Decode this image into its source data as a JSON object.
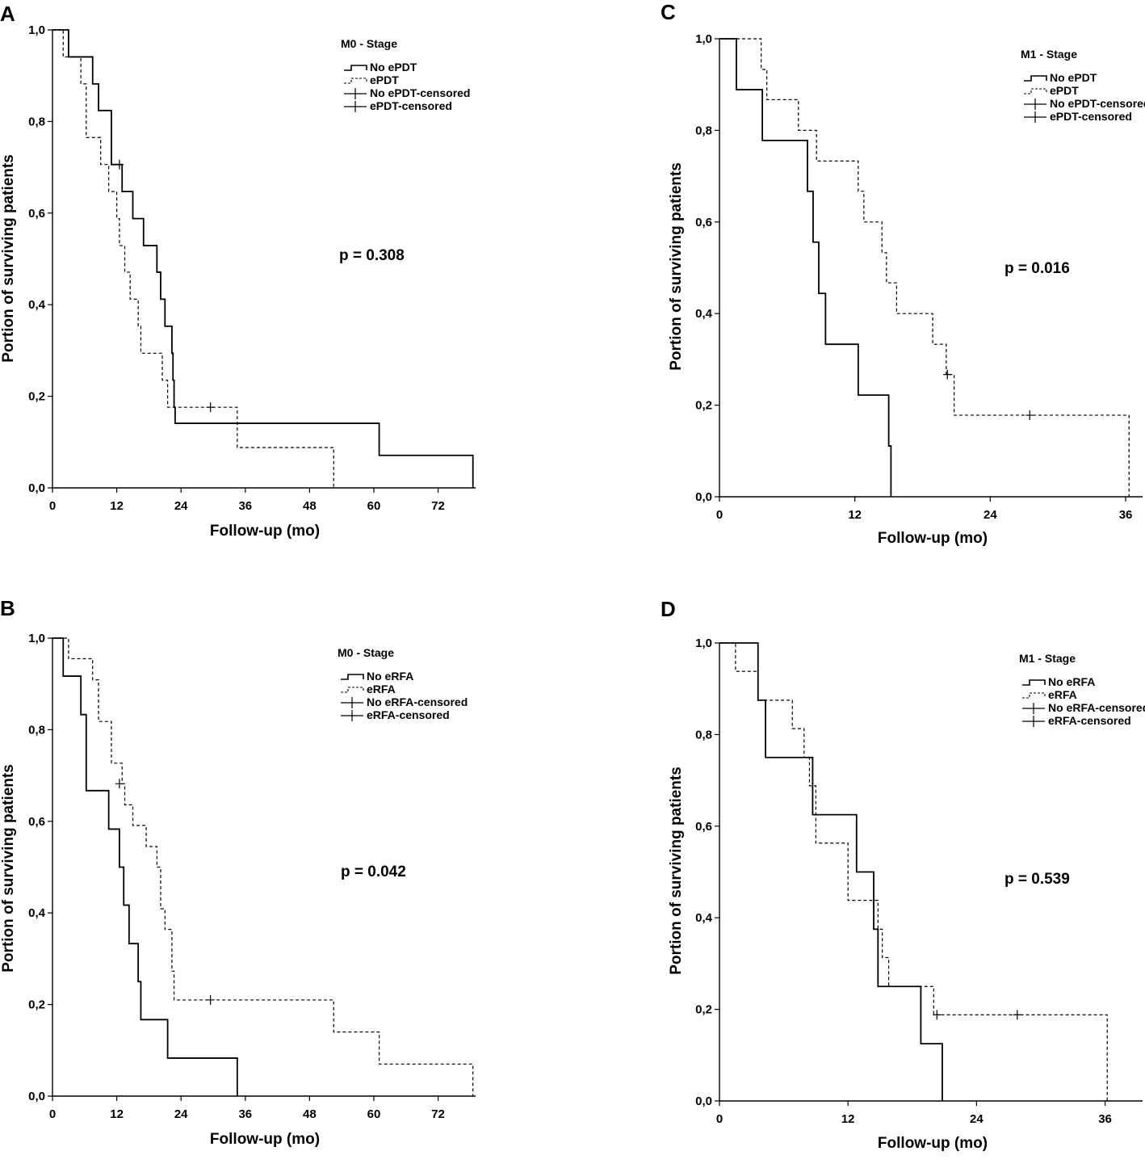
{
  "chart_data": [
    {
      "panel": "A",
      "type": "line",
      "subtype": "kaplan-meier",
      "xlabel": "Follow-up (mo)",
      "ylabel": "Portion of surviving patients",
      "xlim": [
        0,
        79
      ],
      "ylim": [
        0,
        1
      ],
      "xticks": [
        0,
        12,
        24,
        36,
        48,
        60,
        72
      ],
      "xtick_labels": [
        "0",
        "12",
        "24",
        "36",
        "48",
        "60",
        "72"
      ],
      "yticks": [
        0,
        0.2,
        0.4,
        0.6,
        0.8,
        1.0
      ],
      "ytick_labels": [
        "0,0",
        "0,2",
        "0,4",
        "0,6",
        "0,8",
        "1,0"
      ],
      "legend_title": "M0 - Stage",
      "legend": [
        "No ePDT",
        "ePDT",
        "No ePDT-censored",
        "ePDT-censored"
      ],
      "p_value": "p = 0.308",
      "series": [
        {
          "name": "No ePDT",
          "style": "solid",
          "steps": [
            [
              0,
              1.0
            ],
            [
              3,
              0.941
            ],
            [
              7.5,
              0.882
            ],
            [
              8.6,
              0.824
            ],
            [
              11,
              0.706
            ],
            [
              13,
              0.647
            ],
            [
              15,
              0.588
            ],
            [
              17,
              0.529
            ],
            [
              19.5,
              0.471
            ],
            [
              20.2,
              0.412
            ],
            [
              21,
              0.353
            ],
            [
              22.3,
              0.294
            ],
            [
              22.5,
              0.235
            ],
            [
              22.7,
              0.176
            ],
            [
              22.9,
              0.141
            ],
            [
              61,
              0.071
            ],
            [
              78.5,
              0.0
            ]
          ],
          "end": 78.5,
          "censored": [
            [
              12.5,
              0.706
            ]
          ]
        },
        {
          "name": "ePDT",
          "style": "dashed",
          "steps": [
            [
              0,
              1.0
            ],
            [
              2,
              0.941
            ],
            [
              5.3,
              0.882
            ],
            [
              6.3,
              0.765
            ],
            [
              9,
              0.706
            ],
            [
              10.5,
              0.647
            ],
            [
              12,
              0.588
            ],
            [
              12.5,
              0.529
            ],
            [
              13.5,
              0.471
            ],
            [
              14.5,
              0.412
            ],
            [
              16,
              0.353
            ],
            [
              16.5,
              0.294
            ],
            [
              20.5,
              0.235
            ],
            [
              21.5,
              0.176
            ],
            [
              34.5,
              0.088
            ],
            [
              52.5,
              0.0
            ]
          ],
          "end": 52.5,
          "censored": [
            [
              29.5,
              0.176
            ]
          ]
        }
      ]
    },
    {
      "panel": "B",
      "type": "line",
      "subtype": "kaplan-meier",
      "xlabel": "Follow-up (mo)",
      "ylabel": "Portion of surviving patients",
      "xlim": [
        0,
        79
      ],
      "ylim": [
        0,
        1
      ],
      "xticks": [
        0,
        12,
        24,
        36,
        48,
        60,
        72
      ],
      "xtick_labels": [
        "0",
        "12",
        "24",
        "36",
        "48",
        "60",
        "72"
      ],
      "yticks": [
        0,
        0.2,
        0.4,
        0.6,
        0.8,
        1.0
      ],
      "ytick_labels": [
        "0,0",
        "0,2",
        "0,4",
        "0,6",
        "0,8",
        "1,0"
      ],
      "legend_title": "M0 - Stage",
      "legend": [
        "No eRFA",
        "eRFA",
        "No eRFA-censored",
        "eRFA-censored"
      ],
      "p_value": "p = 0.042",
      "series": [
        {
          "name": "No eRFA",
          "style": "solid",
          "steps": [
            [
              0,
              1.0
            ],
            [
              2,
              0.917
            ],
            [
              5.3,
              0.833
            ],
            [
              6.3,
              0.667
            ],
            [
              10.5,
              0.583
            ],
            [
              12.5,
              0.5
            ],
            [
              13.3,
              0.417
            ],
            [
              14.3,
              0.333
            ],
            [
              16,
              0.25
            ],
            [
              16.5,
              0.167
            ],
            [
              21.5,
              0.083
            ],
            [
              34.5,
              0.0
            ]
          ],
          "end": 34.5,
          "censored": []
        },
        {
          "name": "eRFA",
          "style": "dashed",
          "steps": [
            [
              0,
              1.0
            ],
            [
              3,
              0.955
            ],
            [
              7.5,
              0.909
            ],
            [
              8.6,
              0.818
            ],
            [
              11,
              0.727
            ],
            [
              13,
              0.682
            ],
            [
              13.5,
              0.636
            ],
            [
              15,
              0.591
            ],
            [
              17.5,
              0.545
            ],
            [
              19.5,
              0.5
            ],
            [
              20.2,
              0.409
            ],
            [
              21,
              0.364
            ],
            [
              22.3,
              0.273
            ],
            [
              22.7,
              0.21
            ],
            [
              52.5,
              0.14
            ],
            [
              61,
              0.07
            ],
            [
              78.5,
              0.0
            ]
          ],
          "end": 78.5,
          "censored": [
            [
              12.5,
              0.682
            ],
            [
              29.5,
              0.21
            ]
          ]
        }
      ]
    },
    {
      "panel": "C",
      "type": "line",
      "subtype": "kaplan-meier",
      "xlabel": "Follow-up (mo)",
      "ylabel": "Portion of surviving patients",
      "xlim": [
        0,
        37.5
      ],
      "ylim": [
        0,
        1
      ],
      "xticks": [
        0,
        12,
        24,
        36
      ],
      "xtick_labels": [
        "0",
        "12",
        "24",
        "36"
      ],
      "yticks": [
        0,
        0.2,
        0.4,
        0.6,
        0.8,
        1.0
      ],
      "ytick_labels": [
        "0,0",
        "0,2",
        "0,4",
        "0,6",
        "0,8",
        "1,0"
      ],
      "legend_title": "M1 - Stage",
      "legend": [
        "No ePDT",
        "ePDT",
        "No ePDT-censored",
        "ePDT-censored"
      ],
      "p_value": "p = 0.016",
      "series": [
        {
          "name": "No ePDT",
          "style": "solid",
          "steps": [
            [
              0,
              1.0
            ],
            [
              1.5,
              0.889
            ],
            [
              3.8,
              0.778
            ],
            [
              7.8,
              0.667
            ],
            [
              8.3,
              0.556
            ],
            [
              8.8,
              0.444
            ],
            [
              9.4,
              0.333
            ],
            [
              12.3,
              0.222
            ],
            [
              15,
              0.111
            ],
            [
              15.2,
              0.0
            ]
          ],
          "end": 15.2,
          "censored": []
        },
        {
          "name": "ePDT",
          "style": "dashed",
          "steps": [
            [
              0,
              1.0
            ],
            [
              3.7,
              0.933
            ],
            [
              4.2,
              0.867
            ],
            [
              7,
              0.8
            ],
            [
              8.6,
              0.733
            ],
            [
              12.3,
              0.667
            ],
            [
              12.8,
              0.6
            ],
            [
              14.4,
              0.533
            ],
            [
              14.8,
              0.467
            ],
            [
              15.7,
              0.4
            ],
            [
              18.9,
              0.333
            ],
            [
              20.1,
              0.267
            ],
            [
              20.8,
              0.178
            ],
            [
              36.3,
              0.0
            ]
          ],
          "end": 36.3,
          "censored": [
            [
              20.2,
              0.267
            ],
            [
              27.5,
              0.178
            ]
          ]
        }
      ]
    },
    {
      "panel": "D",
      "type": "line",
      "subtype": "kaplan-meier",
      "xlabel": "Follow-up (mo)",
      "ylabel": "Portion of surviving patients",
      "xlim": [
        0,
        39.5
      ],
      "ylim": [
        0,
        1
      ],
      "xticks": [
        0,
        12,
        24,
        36
      ],
      "xtick_labels": [
        "0",
        "12",
        "24",
        "36"
      ],
      "yticks": [
        0,
        0.2,
        0.4,
        0.6,
        0.8,
        1.0
      ],
      "ytick_labels": [
        "0,0",
        "0,2",
        "0,4",
        "0,6",
        "0,8",
        "1,0"
      ],
      "legend_title": "M1 - Stage",
      "legend": [
        "No eRFA",
        "eRFA",
        "No eRFA-censored",
        "eRFA-censored"
      ],
      "p_value": "p = 0.539",
      "series": [
        {
          "name": "No eRFA",
          "style": "solid",
          "steps": [
            [
              0,
              1.0
            ],
            [
              3.6,
              0.875
            ],
            [
              4.3,
              0.75
            ],
            [
              8.7,
              0.625
            ],
            [
              12.8,
              0.5
            ],
            [
              14.4,
              0.375
            ],
            [
              14.8,
              0.25
            ],
            [
              18.8,
              0.125
            ],
            [
              20.8,
              0.0
            ]
          ],
          "end": 20.8,
          "censored": []
        },
        {
          "name": "eRFA",
          "style": "dashed",
          "steps": [
            [
              0,
              1.0
            ],
            [
              1.5,
              0.938
            ],
            [
              3.6,
              0.875
            ],
            [
              6.8,
              0.813
            ],
            [
              7.9,
              0.75
            ],
            [
              8.4,
              0.688
            ],
            [
              9,
              0.563
            ],
            [
              12,
              0.438
            ],
            [
              14.8,
              0.375
            ],
            [
              15.2,
              0.313
            ],
            [
              15.8,
              0.25
            ],
            [
              20,
              0.188
            ],
            [
              36.2,
              0.0
            ]
          ],
          "end": 36.2,
          "censored": [
            [
              20.3,
              0.188
            ],
            [
              27.8,
              0.188
            ]
          ]
        }
      ]
    }
  ]
}
